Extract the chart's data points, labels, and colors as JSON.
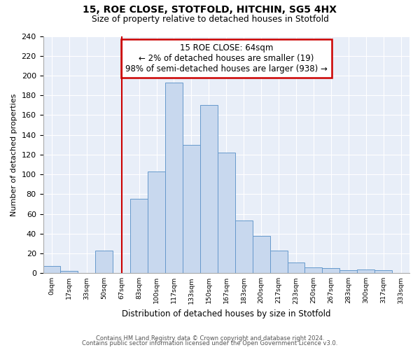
{
  "title": "15, ROE CLOSE, STOTFOLD, HITCHIN, SG5 4HX",
  "subtitle": "Size of property relative to detached houses in Stotfold",
  "xlabel": "Distribution of detached houses by size in Stotfold",
  "ylabel": "Number of detached properties",
  "footnote1": "Contains HM Land Registry data © Crown copyright and database right 2024.",
  "footnote2": "Contains public sector information licensed under the Open Government Licence v3.0.",
  "bar_labels": [
    "0sqm",
    "17sqm",
    "33sqm",
    "50sqm",
    "67sqm",
    "83sqm",
    "100sqm",
    "117sqm",
    "133sqm",
    "150sqm",
    "167sqm",
    "183sqm",
    "200sqm",
    "217sqm",
    "233sqm",
    "250sqm",
    "267sqm",
    "283sqm",
    "300sqm",
    "317sqm",
    "333sqm"
  ],
  "bar_values": [
    7,
    2,
    0,
    23,
    0,
    75,
    103,
    193,
    130,
    170,
    122,
    53,
    38,
    23,
    11,
    6,
    5,
    3,
    4,
    3,
    0
  ],
  "bar_color": "#c8d8ee",
  "bar_edge_color": "#6699cc",
  "vline_x_idx": 4,
  "vline_color": "#cc0000",
  "annotation_box_color": "#cc0000",
  "annotation_line1": "15 ROE CLOSE: 64sqm",
  "annotation_line2": "← 2% of detached houses are smaller (19)",
  "annotation_line3": "98% of semi-detached houses are larger (938) →",
  "plot_bg_color": "#e8eef8",
  "ylim": [
    0,
    240
  ],
  "yticks": [
    0,
    20,
    40,
    60,
    80,
    100,
    120,
    140,
    160,
    180,
    200,
    220,
    240
  ],
  "figsize": [
    6.0,
    5.0
  ],
  "dpi": 100
}
